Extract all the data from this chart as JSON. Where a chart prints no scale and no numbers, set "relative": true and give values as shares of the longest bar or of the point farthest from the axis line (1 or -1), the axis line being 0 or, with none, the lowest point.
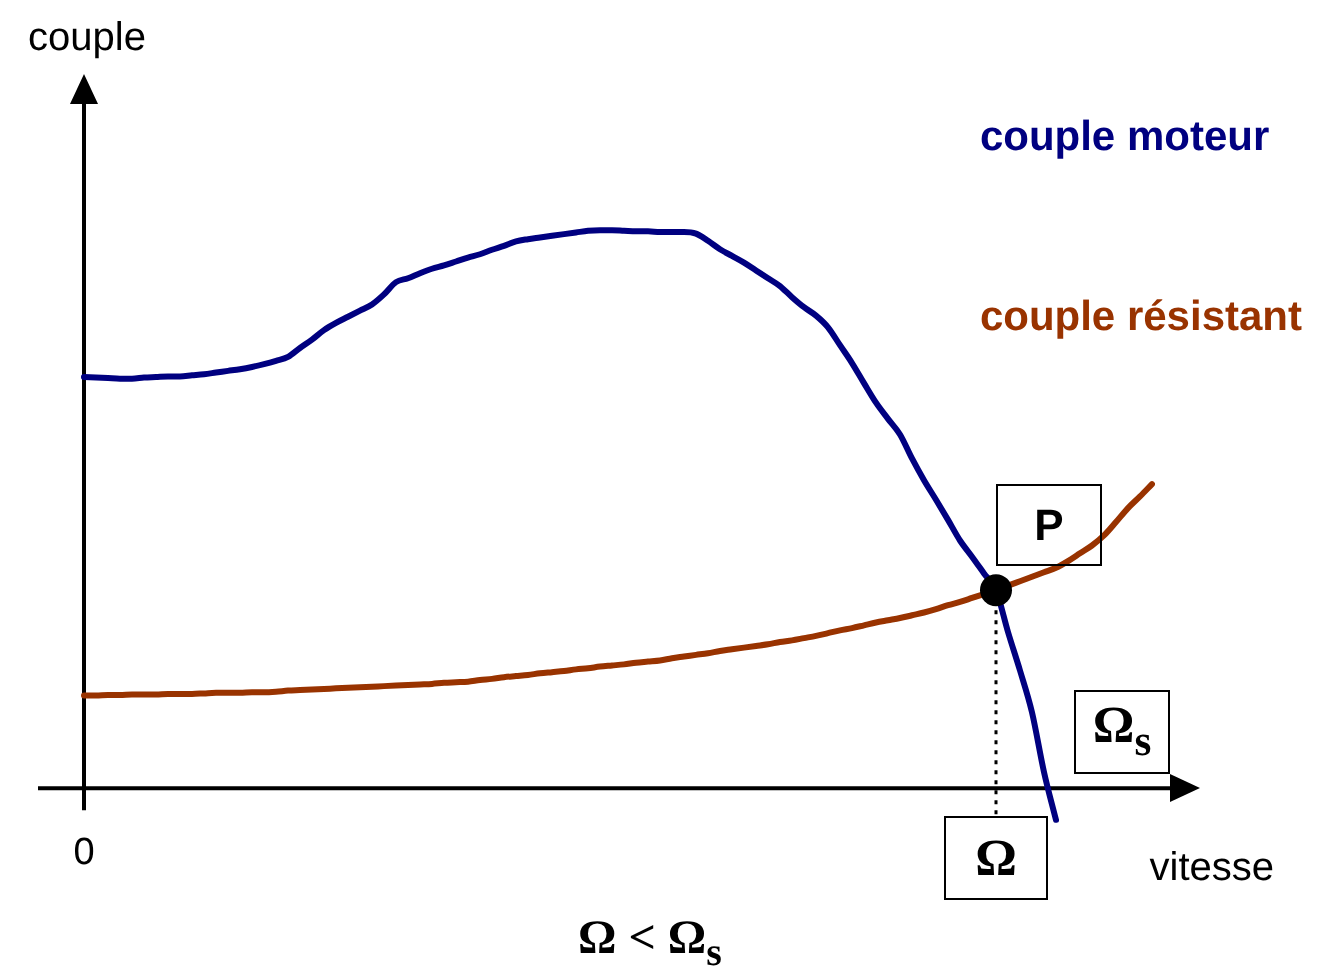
{
  "chart_data": {
    "type": "line",
    "xlabel": "vitesse",
    "ylabel": "couple",
    "relative": true,
    "legend": "top right",
    "categories": [
      "0",
      null,
      null,
      null,
      null,
      null,
      null,
      null,
      null,
      null,
      null,
      null,
      null,
      null,
      null,
      null,
      null,
      null,
      null,
      null,
      null,
      null,
      null,
      null,
      null,
      null,
      null,
      null,
      null,
      null,
      null,
      null,
      null,
      null,
      null,
      null,
      null,
      null,
      null,
      null,
      null,
      null,
      null,
      null,
      null,
      null,
      null,
      null,
      null,
      null,
      null,
      null,
      null,
      null,
      null,
      null,
      null,
      null,
      null,
      null,
      null,
      null,
      null,
      null,
      null,
      null,
      null,
      null,
      null,
      null,
      null,
      null,
      null,
      null,
      null,
      null,
      "Ω",
      null,
      null,
      null,
      null,
      null,
      null,
      null,
      null,
      null,
      null,
      null,
      null,
      null
    ],
    "series": [
      {
        "name": "couple moteur",
        "color": "#000080",
        "values": [
          0.737,
          0.736,
          0.735,
          0.734,
          0.734,
          0.736,
          0.737,
          0.738,
          0.738,
          0.74,
          0.742,
          0.745,
          0.748,
          0.751,
          0.755,
          0.76,
          0.766,
          0.773,
          0.789,
          0.804,
          0.821,
          0.834,
          0.845,
          0.856,
          0.867,
          0.885,
          0.907,
          0.914,
          0.923,
          0.931,
          0.937,
          0.944,
          0.951,
          0.957,
          0.965,
          0.972,
          0.98,
          0.984,
          0.987,
          0.99,
          0.993,
          0.996,
          0.999,
          1,
          1,
          0.999,
          0.998,
          0.998,
          0.997,
          0.997,
          0.997,
          0.994,
          0.981,
          0.966,
          0.954,
          0.942,
          0.928,
          0.914,
          0.9,
          0.88,
          0.862,
          0.847,
          0.826,
          0.794,
          0.762,
          0.726,
          0.691,
          0.662,
          0.634,
          0.591,
          0.552,
          0.517,
          0.481,
          0.444,
          0.415,
          0.385,
          0.355,
          0.28,
          0.211,
          0.136,
          0.029,
          -0.057,
          null,
          null,
          null,
          null,
          null,
          null,
          null,
          null
        ]
      },
      {
        "name": "couple résistant",
        "color": "#993300",
        "values": [
          0.166,
          0.166,
          0.167,
          0.167,
          0.168,
          0.168,
          0.168,
          0.169,
          0.169,
          0.169,
          0.17,
          0.171,
          0.171,
          0.171,
          0.172,
          0.172,
          0.173,
          0.175,
          0.176,
          0.177,
          0.178,
          0.179,
          0.18,
          0.181,
          0.182,
          0.183,
          0.184,
          0.185,
          0.186,
          0.187,
          0.189,
          0.19,
          0.191,
          0.194,
          0.196,
          0.199,
          0.201,
          0.203,
          0.206,
          0.208,
          0.21,
          0.213,
          0.215,
          0.218,
          0.22,
          0.222,
          0.225,
          0.227,
          0.229,
          0.233,
          0.236,
          0.239,
          0.242,
          0.246,
          0.249,
          0.252,
          0.255,
          0.258,
          0.262,
          0.265,
          0.269,
          0.273,
          0.278,
          0.283,
          0.287,
          0.292,
          0.297,
          0.301,
          0.305,
          0.31,
          0.315,
          0.321,
          0.328,
          0.334,
          0.341,
          0.348,
          0.355,
          0.363,
          0.371,
          0.379,
          0.387,
          0.395,
          0.407,
          0.421,
          0.435,
          0.453,
          0.477,
          0.502,
          0.523,
          0.545
        ]
      },
      {
        "type": "scatter",
        "color": "#000000",
        "marker": "circle",
        "values": [
          null,
          null,
          null,
          null,
          null,
          null,
          null,
          null,
          null,
          null,
          null,
          null,
          null,
          null,
          null,
          null,
          null,
          null,
          null,
          null,
          null,
          null,
          null,
          null,
          null,
          null,
          null,
          null,
          null,
          null,
          null,
          null,
          null,
          null,
          null,
          null,
          null,
          null,
          null,
          null,
          null,
          null,
          null,
          null,
          null,
          null,
          null,
          null,
          null,
          null,
          null,
          null,
          null,
          null,
          null,
          null,
          null,
          null,
          null,
          null,
          null,
          null,
          null,
          null,
          null,
          null,
          null,
          null,
          null,
          null,
          null,
          null,
          null,
          null,
          null,
          null,
          0.355,
          null,
          null,
          null,
          null,
          null,
          null,
          null,
          null,
          null,
          null,
          null,
          null,
          null
        ]
      }
    ],
    "ref_lines": [
      {
        "axis": "x",
        "value": "Ω",
        "line_style": "dotted",
        "color": "#000000"
      }
    ],
    "annotations": [
      {
        "text": "P",
        "x": "Ω",
        "y": 0.355
      },
      "Ω$_{s}$",
      "Ω < Ω$_{s}$"
    ]
  }
}
